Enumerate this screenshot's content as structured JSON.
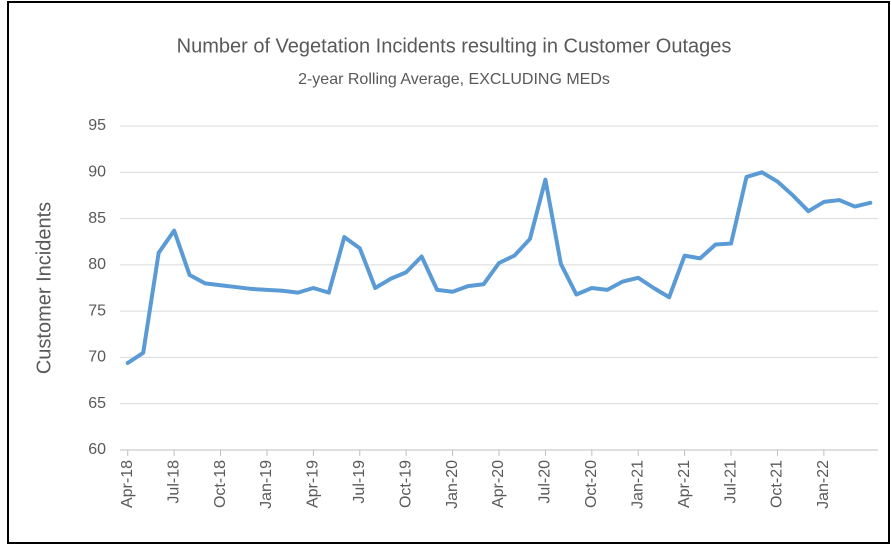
{
  "chart_data": {
    "type": "line",
    "title": "Number of Vegetation Incidents resulting in Customer Outages",
    "subtitle": "2-year Rolling Average, EXCLUDING MEDs",
    "y_label": "Customer Incidents",
    "categories": [
      "Apr-18",
      null,
      null,
      "Jul-18",
      null,
      null,
      "Oct-18",
      null,
      null,
      "Jan-19",
      null,
      null,
      "Apr-19",
      null,
      null,
      "Jul-19",
      null,
      null,
      "Oct-19",
      null,
      null,
      "Jan-20",
      null,
      null,
      "Apr-20",
      null,
      null,
      "Jul-20",
      null,
      null,
      "Oct-20",
      null,
      null,
      "Jan-21",
      null,
      null,
      "Apr-21",
      null,
      null,
      "Jul-21",
      null,
      null,
      "Oct-21",
      null,
      null,
      "Jan-22",
      null,
      null,
      null
    ],
    "series": [
      {
        "name": "Customer Incidents",
        "color": "#5b9bd5",
        "values": [
          69.4,
          70.5,
          81.3,
          83.7,
          78.9,
          78.0,
          77.8,
          77.6,
          77.4,
          77.3,
          77.2,
          77.0,
          77.5,
          77.0,
          83.0,
          81.8,
          77.5,
          78.5,
          79.2,
          80.9,
          77.3,
          77.1,
          77.7,
          77.9,
          80.2,
          81.0,
          82.8,
          89.2,
          80.1,
          76.8,
          77.5,
          77.3,
          78.2,
          78.6,
          77.5,
          76.5,
          81.0,
          80.7,
          82.2,
          82.3,
          89.5,
          90.0,
          89.0,
          87.5,
          85.8,
          86.8,
          87.0,
          86.3,
          86.7
        ]
      }
    ],
    "ylim": [
      60,
      95
    ],
    "yticks": [
      60,
      65,
      70,
      75,
      80,
      85,
      90,
      95
    ],
    "grid": true
  }
}
